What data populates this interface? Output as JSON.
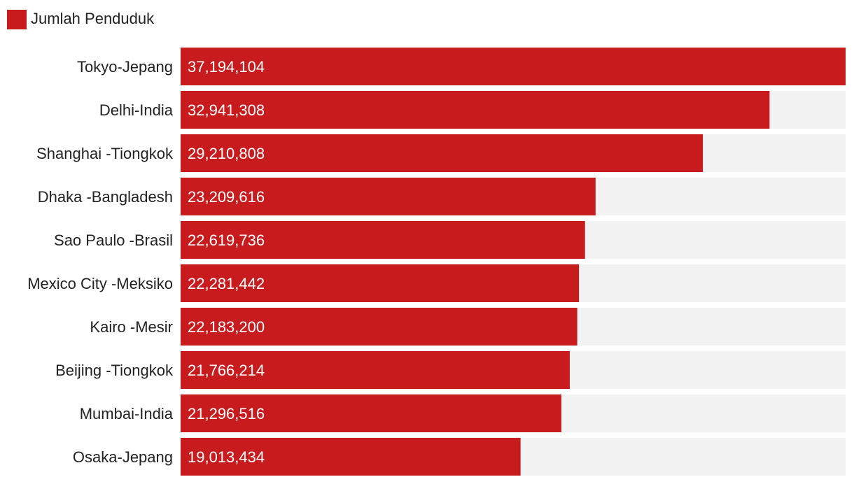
{
  "chart_data": {
    "type": "bar",
    "orientation": "horizontal",
    "categories": [
      "Tokyo-Jepang",
      "Delhi-India",
      "Shanghai -Tiongkok",
      "Dhaka -Bangladesh",
      "Sao Paulo -Brasil",
      "Mexico City -Meksiko",
      "Kairo -Mesir",
      "Beijing -Tiongkok",
      "Mumbai-India",
      "Osaka-Jepang"
    ],
    "series": [
      {
        "name": "Jumlah Penduduk",
        "values": [
          37194104,
          32941308,
          29210808,
          23209616,
          22619736,
          22281442,
          22183200,
          21766214,
          21296516,
          19013434
        ],
        "value_labels": [
          "37,194,104",
          "32,941,308",
          "29,210,808",
          "23,209,616",
          "22,619,736",
          "22,281,442",
          "22,183,200",
          "21,766,214",
          "21,296,516",
          "19,013,434"
        ]
      }
    ],
    "xlim": [
      0,
      37194104
    ],
    "legend_position": "top-left",
    "grid": false,
    "data_labels": "inside-left",
    "colors": {
      "bar": "#c81b1e",
      "track": "#f2f2f2",
      "label_text": "#222222",
      "value_text": "#ffffff"
    }
  }
}
